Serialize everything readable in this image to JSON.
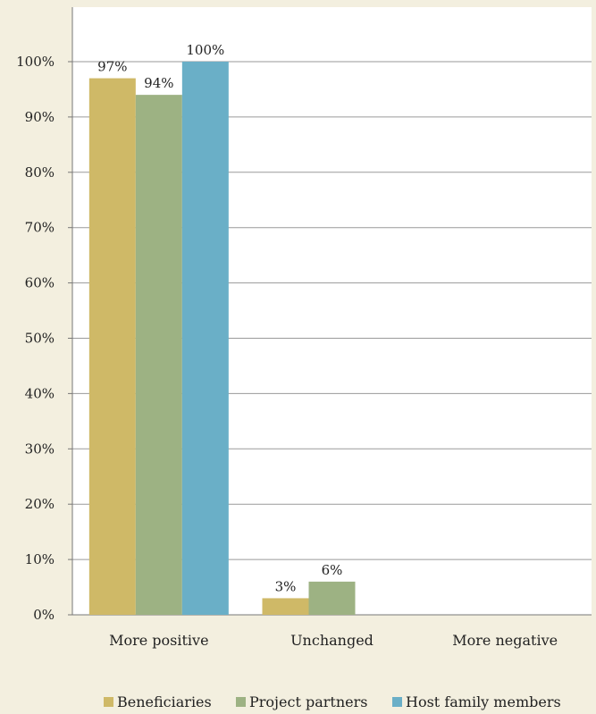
{
  "chart_data": {
    "type": "bar",
    "title": "",
    "xlabel": "",
    "ylabel": "",
    "categories": [
      "More positive",
      "Unchanged",
      "More negative"
    ],
    "series": [
      {
        "name": "Beneficiaries",
        "color": "#cfb967",
        "values": [
          97,
          3,
          0
        ],
        "labels": [
          "97%",
          "3%",
          ""
        ]
      },
      {
        "name": "Project partners",
        "color": "#9db283",
        "values": [
          94,
          6,
          0
        ],
        "labels": [
          "94%",
          "6%",
          ""
        ]
      },
      {
        "name": "Host family members",
        "color": "#6aafc7",
        "values": [
          100,
          0,
          0
        ],
        "labels": [
          "100%",
          "",
          ""
        ]
      }
    ],
    "ylim": [
      0,
      100
    ],
    "yticks": [
      0,
      10,
      20,
      30,
      40,
      50,
      60,
      70,
      80,
      90,
      100
    ],
    "ytick_labels": [
      "0%",
      "10%",
      "20%",
      "30%",
      "40%",
      "50%",
      "60%",
      "70%",
      "80%",
      "90%",
      "100%"
    ],
    "grid": true,
    "legend_position": "bottom"
  }
}
